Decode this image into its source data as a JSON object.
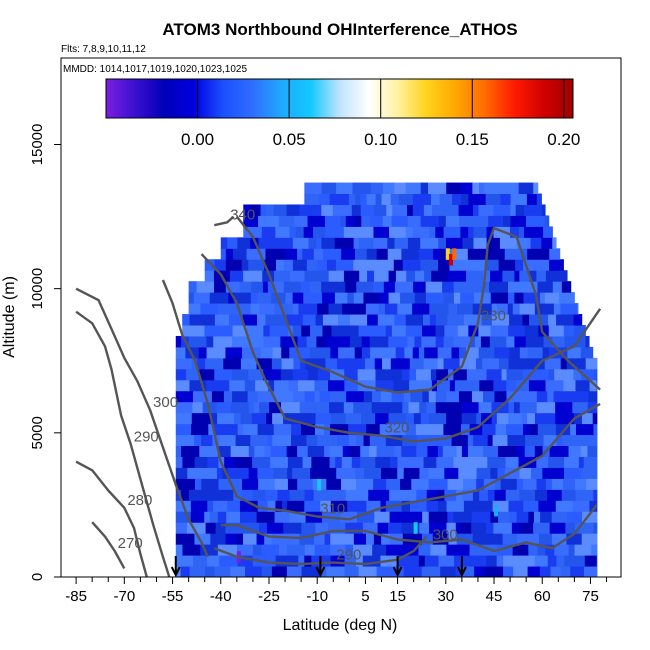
{
  "chart_data": {
    "type": "heatmap",
    "title": "ATOM3 Northbound OHInterference_ATHOS",
    "subtitle_flights": "Flts: 7,8,9,10,11,12",
    "subtitle_dates": "MMDD: 1014,1017,1019,1020,1023,1025",
    "xlabel": "Latitude (deg N)",
    "ylabel": "Altitude (m)",
    "xlim": [
      -85,
      80
    ],
    "ylim": [
      0,
      18000
    ],
    "x_tick_labels": [
      "-85",
      "-70",
      "-55",
      "-40",
      "-25",
      "-10",
      "5",
      "15",
      "30",
      "45",
      "60",
      "75"
    ],
    "x_tick_values": [
      -85,
      -70,
      -55,
      -40,
      -25,
      -10,
      5,
      15,
      30,
      45,
      60,
      75
    ],
    "x_minor_ticks": [
      -80,
      -75,
      -65,
      -60,
      -50,
      -45,
      -35,
      -30,
      -20,
      -15,
      -5,
      0,
      10,
      20,
      25,
      35,
      40,
      50,
      55,
      65,
      70,
      80
    ],
    "y_tick_labels": [
      "0",
      "5000",
      "10000",
      "15000"
    ],
    "y_tick_values": [
      0,
      5000,
      10000,
      15000
    ],
    "colorbar": {
      "range": [
        -0.05,
        0.205
      ],
      "tick_labels": [
        "0.00",
        "0.05",
        "0.10",
        "0.15",
        "0.20"
      ],
      "tick_values": [
        0.0,
        0.05,
        0.1,
        0.15,
        0.2
      ],
      "colors": [
        "#7a1fe0",
        "#3a10d0",
        "#0000b8",
        "#0000e0",
        "#1a4fff",
        "#2f6cff",
        "#1fa8ff",
        "#12c8ff",
        "#bfe3ff",
        "#ffffff",
        "#fff2a0",
        "#ffd21a",
        "#ffa600",
        "#ff6a00",
        "#ff1a00",
        "#d00000",
        "#a00000"
      ]
    },
    "contours": [
      {
        "label": "270",
        "points": [
          [
            -80,
            1900
          ],
          [
            -76,
            1400
          ],
          [
            -73,
            900
          ],
          [
            -70,
            300
          ]
        ]
      },
      {
        "label": "280",
        "points": [
          [
            -85,
            4000
          ],
          [
            -80,
            3700
          ],
          [
            -75,
            3000
          ],
          [
            -70,
            2400
          ],
          [
            -67,
            1700
          ],
          [
            -65,
            800
          ],
          [
            -63,
            0
          ]
        ]
      },
      {
        "label": "290",
        "points": [
          [
            -85,
            9200
          ],
          [
            -80,
            8800
          ],
          [
            -76,
            8000
          ],
          [
            -74,
            7200
          ],
          [
            -71,
            5600
          ],
          [
            -68,
            4600
          ],
          [
            -64,
            3000
          ],
          [
            -61,
            1800
          ],
          [
            -58,
            700
          ],
          [
            -56,
            0
          ]
        ]
      },
      {
        "label": "290",
        "points": [
          [
            -42,
            1000
          ],
          [
            -35,
            700
          ],
          [
            -25,
            500
          ],
          [
            -15,
            450
          ],
          [
            -5,
            500
          ],
          [
            5,
            450
          ],
          [
            15,
            600
          ],
          [
            20,
            900
          ],
          [
            24,
            1400
          ]
        ]
      },
      {
        "label": "300",
        "points": [
          [
            -85,
            10000
          ],
          [
            -78,
            9600
          ],
          [
            -74,
            8600
          ],
          [
            -70,
            7600
          ],
          [
            -66,
            6800
          ],
          [
            -62,
            5800
          ],
          [
            -58,
            4500
          ],
          [
            -54,
            3200
          ],
          [
            -50,
            2000
          ],
          [
            -46,
            1200
          ],
          [
            -44,
            700
          ]
        ]
      },
      {
        "label": "300",
        "points": [
          [
            -40,
            1800
          ],
          [
            -35,
            1800
          ],
          [
            -25,
            1400
          ],
          [
            -15,
            1350
          ],
          [
            -5,
            1600
          ],
          [
            5,
            1600
          ],
          [
            15,
            1300
          ],
          [
            25,
            1200
          ],
          [
            35,
            1300
          ],
          [
            45,
            900
          ],
          [
            55,
            1200
          ],
          [
            63,
            1000
          ],
          [
            70,
            1500
          ],
          [
            77,
            2500
          ]
        ]
      },
      {
        "label": "310",
        "points": [
          [
            -58,
            10300
          ],
          [
            -55,
            9500
          ],
          [
            -52,
            8400
          ],
          [
            -48,
            7500
          ],
          [
            -44,
            6000
          ],
          [
            -40,
            4000
          ],
          [
            -35,
            2800
          ],
          [
            -28,
            2400
          ],
          [
            -20,
            2300
          ],
          [
            -10,
            2100
          ],
          [
            0,
            2000
          ],
          [
            10,
            2400
          ],
          [
            20,
            2600
          ],
          [
            30,
            2800
          ],
          [
            40,
            3000
          ],
          [
            50,
            3600
          ],
          [
            60,
            4200
          ],
          [
            70,
            5500
          ],
          [
            78,
            6000
          ]
        ]
      },
      {
        "label": "320",
        "points": [
          [
            -46,
            11200
          ],
          [
            -40,
            10500
          ],
          [
            -35,
            9500
          ],
          [
            -30,
            7800
          ],
          [
            -26,
            6800
          ],
          [
            -20,
            5500
          ],
          [
            -10,
            5200
          ],
          [
            0,
            5000
          ],
          [
            10,
            4900
          ],
          [
            20,
            4700
          ],
          [
            30,
            4800
          ],
          [
            40,
            5200
          ],
          [
            50,
            6200
          ],
          [
            60,
            7500
          ],
          [
            70,
            8000
          ],
          [
            78,
            9300
          ]
        ]
      },
      {
        "label": "330",
        "points": [
          [
            -35,
            12500
          ],
          [
            -30,
            11800
          ],
          [
            -25,
            10500
          ],
          [
            -20,
            9000
          ],
          [
            -15,
            7500
          ],
          [
            -5,
            7100
          ],
          [
            5,
            6600
          ],
          [
            15,
            6400
          ],
          [
            25,
            6500
          ],
          [
            35,
            7300
          ],
          [
            40,
            8800
          ],
          [
            42,
            10200
          ],
          [
            43,
            11500
          ],
          [
            45,
            12100
          ],
          [
            52,
            11800
          ],
          [
            55,
            10800
          ],
          [
            58,
            9800
          ],
          [
            60,
            8500
          ],
          [
            68,
            7500
          ],
          [
            78,
            6500
          ]
        ]
      },
      {
        "label": "340",
        "points": [
          [
            -42,
            12200
          ],
          [
            -38,
            12300
          ],
          [
            -36,
            12500
          ]
        ]
      }
    ],
    "arrows_x": [
      -54,
      -9,
      15,
      35
    ]
  }
}
